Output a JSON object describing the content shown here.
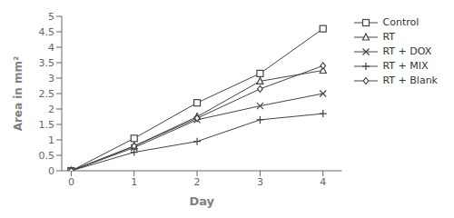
{
  "chart_data": {
    "type": "line",
    "xlabel": "Day",
    "ylabel": "Area in mm²",
    "x": [
      0,
      1,
      2,
      3,
      4
    ],
    "series": [
      {
        "name": "Control",
        "color": "#444444",
        "marker": "square",
        "line_style": "solid",
        "values": [
          0,
          1.05,
          2.2,
          3.15,
          4.6
        ]
      },
      {
        "name": "RT",
        "color": "#444444",
        "marker": "triangle",
        "line_style": "solid",
        "values": [
          0,
          0.8,
          1.75,
          2.9,
          3.25
        ]
      },
      {
        "name": "RT + DOX",
        "color": "#444444",
        "marker": "x",
        "line_style": "solid",
        "values": [
          0,
          0.75,
          1.65,
          2.1,
          2.5
        ]
      },
      {
        "name": "RT + MIX",
        "color": "#444444",
        "marker": "plus",
        "line_style": "solid",
        "values": [
          0,
          0.6,
          0.95,
          1.65,
          1.85
        ]
      },
      {
        "name": "RT + Blank",
        "color": "#444444",
        "marker": "diamond",
        "line_style": "solid",
        "values": [
          0,
          0.8,
          1.7,
          2.65,
          3.4
        ]
      }
    ],
    "xlim": [
      -0.15,
      4.3
    ],
    "xticks": [
      0,
      1,
      2,
      3,
      4
    ],
    "ylim": [
      0,
      5
    ],
    "yticks": [
      0,
      0.5,
      1,
      1.5,
      2,
      2.5,
      3,
      3.5,
      4,
      4.5,
      5
    ],
    "grid": false,
    "legend": "right"
  }
}
